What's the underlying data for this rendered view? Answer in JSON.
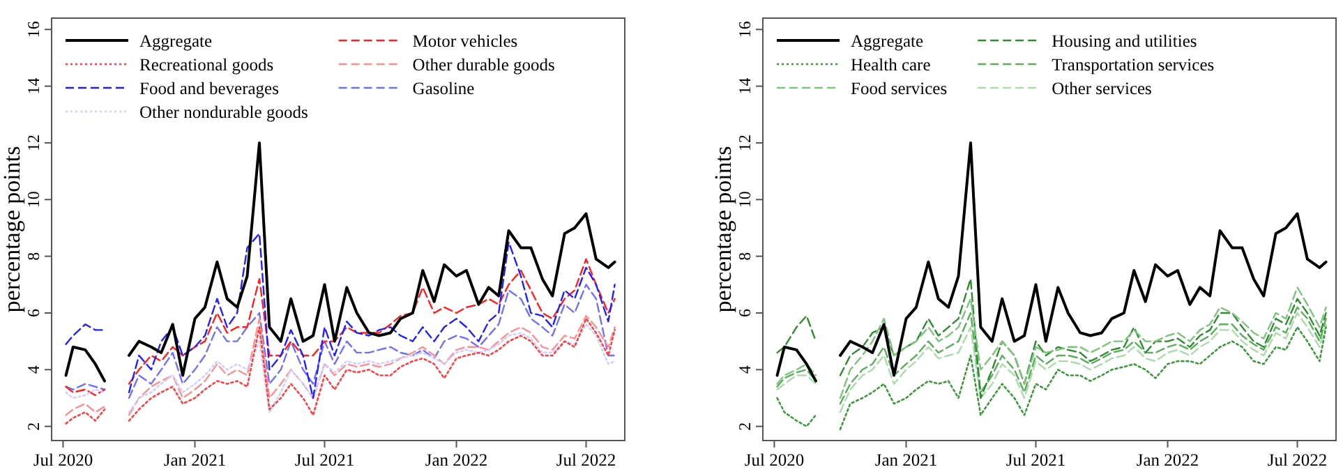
{
  "chart_data": [
    {
      "type": "line",
      "ylabel": "percentage points",
      "legend": "top left",
      "grid": false,
      "x": [
        "2020-07-05",
        "2020-07-15",
        "2020-08-01",
        "2020-08-15",
        "2020-08-28",
        "2020-09-15",
        "2020-10-01",
        "2020-10-15",
        "2020-11-01",
        "2020-11-15",
        "2020-12-01",
        "2020-12-15",
        "2021-01-01",
        "2021-01-15",
        "2021-02-01",
        "2021-02-15",
        "2021-03-01",
        "2021-03-15",
        "2021-04-01",
        "2021-04-15",
        "2021-05-01",
        "2021-05-15",
        "2021-06-01",
        "2021-06-15",
        "2021-07-01",
        "2021-07-15",
        "2021-08-01",
        "2021-08-15",
        "2021-09-01",
        "2021-09-15",
        "2021-10-01",
        "2021-10-15",
        "2021-11-01",
        "2021-11-15",
        "2021-12-01",
        "2021-12-15",
        "2022-01-01",
        "2022-01-15",
        "2022-02-01",
        "2022-02-15",
        "2022-03-01",
        "2022-03-15",
        "2022-04-01",
        "2022-04-15",
        "2022-05-01",
        "2022-05-15",
        "2022-06-01",
        "2022-06-15",
        "2022-07-01",
        "2022-07-15",
        "2022-08-01",
        "2022-08-10"
      ],
      "xlim": [
        "2020-06-15",
        "2022-08-24"
      ],
      "xticks": [
        {
          "value": "2020-07-01",
          "label": "Jul 2020"
        },
        {
          "value": "2021-01-01",
          "label": "Jan 2021"
        },
        {
          "value": "2021-07-01",
          "label": "Jul 2021"
        },
        {
          "value": "2022-01-01",
          "label": "Jan 2022"
        },
        {
          "value": "2022-07-01",
          "label": "Jul 2022"
        }
      ],
      "ylim": [
        1.5,
        16.4
      ],
      "yticks": [
        2,
        4,
        6,
        8,
        10,
        12,
        14,
        16
      ],
      "series": [
        {
          "name": "Aggregate",
          "color": "#000000",
          "line_style": "solid",
          "values": [
            3.8,
            4.8,
            4.7,
            4.2,
            3.6,
            null,
            4.5,
            5.0,
            4.8,
            4.6,
            5.6,
            3.8,
            5.8,
            6.2,
            7.8,
            6.5,
            6.2,
            7.3,
            12.0,
            5.5,
            5.0,
            6.5,
            5.0,
            5.2,
            7.0,
            5.0,
            6.9,
            6.0,
            5.3,
            5.2,
            5.3,
            5.8,
            6.0,
            7.5,
            6.4,
            7.7,
            7.3,
            7.5,
            6.3,
            6.9,
            6.6,
            8.9,
            8.3,
            8.3,
            7.2,
            6.6,
            8.8,
            9.0,
            9.5,
            7.9,
            7.6,
            7.8
          ]
        },
        {
          "name": "Recreational goods",
          "color": "#ff4040",
          "line_style": "dotted",
          "values": [
            2.1,
            2.3,
            2.5,
            2.2,
            2.6,
            null,
            2.2,
            2.6,
            3.0,
            3.2,
            3.4,
            2.8,
            3.0,
            3.3,
            3.6,
            3.5,
            3.6,
            3.4,
            5.5,
            2.6,
            3.0,
            3.5,
            3.0,
            2.4,
            3.8,
            3.3,
            4.0,
            3.9,
            4.0,
            3.8,
            3.8,
            4.1,
            4.3,
            4.4,
            4.2,
            3.7,
            4.4,
            4.5,
            4.6,
            4.5,
            4.7,
            5.0,
            5.2,
            5.0,
            4.5,
            4.5,
            5.0,
            4.8,
            5.8,
            5.3,
            4.5,
            5.4
          ]
        },
        {
          "name": "Food and beverages",
          "color": "#2020ff",
          "line_style": "dashed",
          "values": [
            4.9,
            5.2,
            5.6,
            5.4,
            5.4,
            null,
            3.2,
            4.5,
            4.0,
            5.0,
            5.5,
            4.5,
            4.8,
            5.2,
            6.5,
            5.5,
            6.0,
            8.3,
            8.8,
            4.0,
            4.5,
            5.4,
            4.5,
            3.0,
            5.5,
            4.5,
            5.7,
            5.3,
            5.2,
            5.4,
            5.5,
            5.2,
            5.0,
            5.5,
            5.0,
            5.5,
            5.8,
            5.5,
            5.0,
            5.7,
            6.0,
            8.5,
            7.3,
            6.0,
            5.9,
            5.5,
            6.8,
            6.5,
            7.6,
            7.0,
            5.7,
            7.0
          ]
        },
        {
          "name": "Other nondurable goods",
          "color": "#d0d0ff",
          "line_style": "dotted",
          "values": [
            3.2,
            3.0,
            3.1,
            3.3,
            3.2,
            null,
            2.5,
            3.0,
            3.2,
            3.5,
            3.8,
            3.2,
            3.5,
            3.8,
            4.3,
            4.0,
            4.2,
            4.0,
            5.0,
            2.5,
            3.2,
            4.0,
            3.5,
            3.0,
            4.2,
            3.9,
            4.3,
            4.2,
            4.3,
            4.2,
            4.3,
            4.4,
            4.5,
            4.6,
            4.4,
            4.2,
            4.6,
            4.7,
            4.6,
            4.7,
            4.9,
            5.2,
            5.3,
            5.1,
            4.6,
            4.6,
            5.0,
            4.9,
            5.6,
            5.2,
            4.2,
            4.3
          ]
        },
        {
          "name": "Motor vehicles",
          "color": "#ff2020",
          "line_style": "dashed",
          "values": [
            3.4,
            3.2,
            3.3,
            3.1,
            3.3,
            null,
            3.5,
            4.0,
            4.5,
            4.3,
            4.8,
            4.5,
            4.8,
            5.0,
            6.0,
            5.3,
            5.5,
            5.5,
            7.2,
            4.5,
            4.5,
            5.0,
            4.5,
            4.5,
            5.0,
            5.0,
            5.5,
            5.3,
            5.3,
            5.3,
            5.6,
            5.9,
            6.0,
            6.9,
            6.0,
            6.2,
            6.0,
            6.2,
            6.3,
            6.5,
            6.3,
            7.0,
            7.5,
            6.8,
            6.0,
            5.8,
            6.5,
            6.8,
            7.9,
            7.0,
            6.0,
            6.5
          ]
        },
        {
          "name": "Other durable goods",
          "color": "#ff9090",
          "line_style": "dashed",
          "values": [
            2.4,
            2.6,
            2.8,
            2.5,
            2.7,
            null,
            2.4,
            3.0,
            3.4,
            3.6,
            3.8,
            3.0,
            3.3,
            3.6,
            4.2,
            3.8,
            4.0,
            3.8,
            5.8,
            3.0,
            3.5,
            4.0,
            3.5,
            3.0,
            4.2,
            3.8,
            4.2,
            4.1,
            4.2,
            4.1,
            4.2,
            4.4,
            4.6,
            4.8,
            4.5,
            4.2,
            4.7,
            4.8,
            4.8,
            4.7,
            5.0,
            5.3,
            5.5,
            5.3,
            4.8,
            4.7,
            5.2,
            5.1,
            5.9,
            5.5,
            4.8,
            5.5
          ]
        },
        {
          "name": "Gasoline",
          "color": "#7070ff",
          "line_style": "dashed",
          "values": [
            3.4,
            3.3,
            3.5,
            3.4,
            3.3,
            null,
            3.0,
            3.8,
            3.5,
            4.0,
            4.6,
            3.5,
            4.0,
            4.5,
            5.5,
            5.0,
            5.0,
            5.5,
            6.0,
            3.5,
            4.0,
            5.0,
            4.0,
            3.5,
            5.0,
            4.2,
            5.0,
            4.6,
            4.6,
            4.7,
            4.8,
            4.6,
            4.5,
            4.7,
            4.4,
            5.0,
            5.2,
            5.1,
            4.8,
            5.2,
            5.6,
            6.8,
            6.5,
            5.8,
            5.5,
            5.2,
            6.3,
            6.0,
            7.0,
            6.5,
            4.5,
            4.5
          ]
        }
      ]
    },
    {
      "type": "line",
      "ylabel": "percentage points",
      "legend": "top left",
      "grid": false,
      "x": [
        "2020-07-05",
        "2020-07-15",
        "2020-08-01",
        "2020-08-15",
        "2020-08-28",
        "2020-09-15",
        "2020-10-01",
        "2020-10-15",
        "2020-11-01",
        "2020-11-15",
        "2020-12-01",
        "2020-12-15",
        "2021-01-01",
        "2021-01-15",
        "2021-02-01",
        "2021-02-15",
        "2021-03-01",
        "2021-03-15",
        "2021-04-01",
        "2021-04-15",
        "2021-05-01",
        "2021-05-15",
        "2021-06-01",
        "2021-06-15",
        "2021-07-01",
        "2021-07-15",
        "2021-08-01",
        "2021-08-15",
        "2021-09-01",
        "2021-09-15",
        "2021-10-01",
        "2021-10-15",
        "2021-11-01",
        "2021-11-15",
        "2021-12-01",
        "2021-12-15",
        "2022-01-01",
        "2022-01-15",
        "2022-02-01",
        "2022-02-15",
        "2022-03-01",
        "2022-03-15",
        "2022-04-01",
        "2022-04-15",
        "2022-05-01",
        "2022-05-15",
        "2022-06-01",
        "2022-06-15",
        "2022-07-01",
        "2022-07-15",
        "2022-08-01",
        "2022-08-10"
      ],
      "xlim": [
        "2020-06-15",
        "2022-08-24"
      ],
      "xticks": [
        {
          "value": "2020-07-01",
          "label": "Jul 2020"
        },
        {
          "value": "2021-01-01",
          "label": "Jan 2021"
        },
        {
          "value": "2021-07-01",
          "label": "Jul 2021"
        },
        {
          "value": "2022-01-01",
          "label": "Jan 2022"
        },
        {
          "value": "2022-07-01",
          "label": "Jul 2022"
        }
      ],
      "ylim": [
        1.5,
        16.4
      ],
      "yticks": [
        2,
        4,
        6,
        8,
        10,
        12,
        14,
        16
      ],
      "series": [
        {
          "name": "Aggregate",
          "color": "#000000",
          "line_style": "solid",
          "values": [
            3.8,
            4.8,
            4.7,
            4.2,
            3.6,
            null,
            4.5,
            5.0,
            4.8,
            4.6,
            5.6,
            3.8,
            5.8,
            6.2,
            7.8,
            6.5,
            6.2,
            7.3,
            12.0,
            5.5,
            5.0,
            6.5,
            5.0,
            5.2,
            7.0,
            5.0,
            6.9,
            6.0,
            5.3,
            5.2,
            5.3,
            5.8,
            6.0,
            7.5,
            6.4,
            7.7,
            7.3,
            7.5,
            6.3,
            6.9,
            6.6,
            8.9,
            8.3,
            8.3,
            7.2,
            6.6,
            8.8,
            9.0,
            9.5,
            7.9,
            7.6,
            7.8
          ]
        },
        {
          "name": "Health care",
          "color": "#3a9a3a",
          "line_style": "dotted",
          "values": [
            3.0,
            2.5,
            2.2,
            2.0,
            2.4,
            null,
            1.9,
            2.8,
            3.0,
            3.2,
            3.5,
            2.8,
            3.0,
            3.3,
            3.6,
            3.5,
            3.6,
            3.0,
            4.5,
            2.4,
            3.0,
            3.5,
            3.0,
            2.4,
            3.5,
            3.3,
            4.0,
            3.8,
            3.8,
            3.6,
            3.8,
            4.0,
            4.1,
            4.2,
            4.0,
            3.7,
            4.2,
            4.3,
            4.3,
            4.2,
            4.5,
            4.8,
            5.0,
            4.8,
            4.3,
            4.2,
            4.8,
            4.7,
            5.5,
            5.0,
            4.3,
            5.5
          ]
        },
        {
          "name": "Food services",
          "color": "#7cc47c",
          "line_style": "dashed",
          "values": [
            3.5,
            3.8,
            4.0,
            4.2,
            3.8,
            null,
            3.0,
            4.0,
            4.5,
            5.0,
            5.8,
            4.5,
            4.8,
            5.0,
            5.5,
            5.0,
            5.2,
            5.5,
            6.5,
            4.0,
            4.5,
            5.0,
            4.5,
            3.5,
            4.8,
            4.6,
            4.7,
            4.8,
            4.8,
            4.6,
            4.8,
            5.0,
            5.0,
            5.4,
            5.0,
            5.0,
            5.2,
            5.3,
            5.0,
            5.4,
            5.6,
            6.2,
            6.0,
            5.7,
            5.3,
            5.1,
            6.0,
            5.8,
            6.9,
            6.3,
            5.5,
            6.2
          ]
        },
        {
          "name": "Housing and utilities",
          "color": "#2e8b2e",
          "line_style": "dashed",
          "values": [
            4.6,
            4.8,
            5.5,
            5.9,
            5.0,
            null,
            3.8,
            4.5,
            4.8,
            5.3,
            5.5,
            4.5,
            4.8,
            5.0,
            5.8,
            5.2,
            5.5,
            5.8,
            7.2,
            3.0,
            4.0,
            5.0,
            4.5,
            3.5,
            5.0,
            4.5,
            4.8,
            4.7,
            4.6,
            4.3,
            4.5,
            4.7,
            4.8,
            5.5,
            4.6,
            5.0,
            5.0,
            5.1,
            4.8,
            5.2,
            5.4,
            6.0,
            6.0,
            5.5,
            5.0,
            4.8,
            5.8,
            5.6,
            6.5,
            6.0,
            5.2,
            6.0
          ]
        },
        {
          "name": "Transportation services",
          "color": "#5aae5a",
          "line_style": "dashed",
          "values": [
            3.4,
            3.7,
            3.9,
            4.0,
            3.6,
            null,
            2.8,
            3.5,
            4.0,
            4.2,
            4.8,
            3.8,
            4.2,
            4.5,
            5.0,
            4.6,
            4.8,
            5.0,
            6.0,
            3.2,
            3.8,
            4.5,
            4.0,
            3.2,
            4.5,
            4.2,
            4.5,
            4.5,
            4.4,
            4.2,
            4.4,
            4.6,
            4.7,
            5.0,
            4.6,
            4.6,
            4.8,
            4.9,
            4.7,
            5.0,
            5.2,
            5.6,
            5.6,
            5.2,
            4.9,
            4.7,
            5.5,
            5.3,
            6.2,
            5.8,
            5.0,
            5.8
          ]
        },
        {
          "name": "Other services",
          "color": "#a8dca8",
          "line_style": "dashed",
          "values": [
            3.3,
            3.5,
            3.8,
            3.8,
            3.5,
            null,
            2.5,
            3.3,
            3.8,
            4.0,
            4.5,
            3.5,
            4.0,
            4.3,
            4.8,
            4.4,
            4.5,
            4.6,
            5.5,
            3.0,
            3.5,
            4.2,
            3.8,
            3.0,
            4.3,
            4.0,
            4.3,
            4.3,
            4.2,
            4.0,
            4.2,
            4.4,
            4.5,
            4.8,
            4.4,
            4.3,
            4.6,
            4.7,
            4.5,
            4.8,
            5.0,
            5.4,
            5.4,
            5.0,
            4.7,
            4.5,
            5.3,
            5.1,
            6.0,
            5.5,
            4.8,
            5.6
          ]
        }
      ]
    }
  ]
}
